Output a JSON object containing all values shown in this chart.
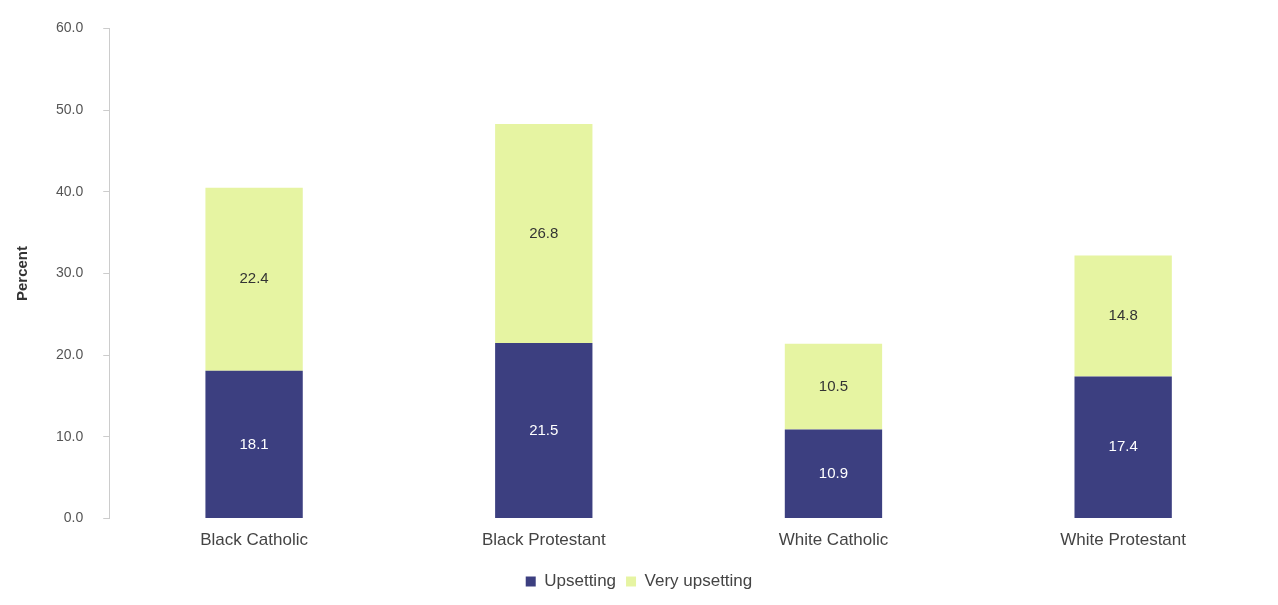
{
  "chart_data": {
    "type": "bar",
    "stacked": true,
    "ylabel": "Percent",
    "categories": [
      "Black Catholic",
      "Black Protestant",
      "White Catholic",
      "White Protestant"
    ],
    "series": [
      {
        "name": "Upsetting",
        "color": "#3c3f80",
        "values": [
          18.1,
          21.5,
          10.9,
          17.4
        ]
      },
      {
        "name": "Very upsetting",
        "color": "#e6f4a2",
        "values": [
          22.4,
          26.8,
          10.5,
          14.8
        ]
      }
    ],
    "ylim": [
      0,
      60
    ],
    "yticks": [
      {
        "value": 0,
        "label": "0.0"
      },
      {
        "value": 10,
        "label": "10.0"
      },
      {
        "value": 20,
        "label": "20.0"
      },
      {
        "value": 30,
        "label": "30.0"
      },
      {
        "value": 40,
        "label": "40.0"
      },
      {
        "value": 50,
        "label": "50.0"
      },
      {
        "value": 60,
        "label": "60.0"
      }
    ],
    "grid": false,
    "legend": "bottom",
    "data_labels": true
  }
}
